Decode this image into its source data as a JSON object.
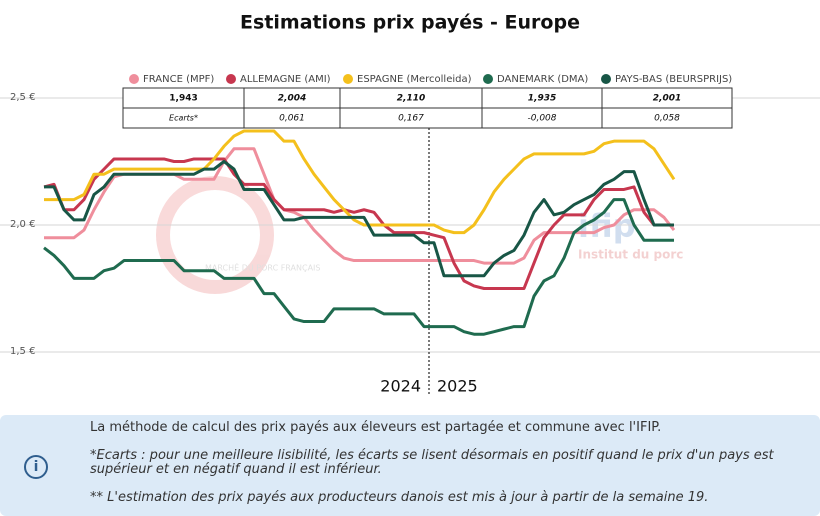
{
  "chart_data": {
    "type": "line",
    "title": "Estimations prix payés - Europe",
    "categories": [
      null,
      null,
      null,
      null,
      null,
      null,
      null,
      null,
      null,
      null,
      null,
      null,
      null,
      null,
      null,
      null,
      null,
      null,
      null,
      null,
      null,
      null,
      null,
      null,
      null,
      null,
      null,
      null,
      null,
      null,
      null,
      null,
      null,
      null,
      null,
      null,
      null,
      null,
      null,
      null,
      null,
      null,
      null,
      null,
      null,
      null,
      null,
      null,
      null,
      null,
      null,
      null,
      null,
      null,
      null,
      null,
      null,
      null,
      null,
      null,
      null,
      null,
      null,
      null
    ],
    "ylim": [
      1.4,
      2.6
    ],
    "yticks": [
      {
        "value": 1.5,
        "label": "1,5 €"
      },
      {
        "value": 2.0,
        "label": "2,0 €"
      },
      {
        "value": 2.5,
        "label": "2,5 €"
      }
    ],
    "grid": true,
    "legend": "top",
    "annotations": [
      "2024",
      "2025"
    ],
    "series": [
      {
        "name": "FRANCE (MPF)",
        "color": "#ef8e9c",
        "values": [
          1.95,
          1.95,
          1.95,
          1.95,
          1.98,
          2.06,
          2.13,
          2.19,
          2.2,
          2.2,
          2.2,
          2.2,
          2.2,
          2.2,
          2.18,
          2.18,
          2.18,
          2.18,
          2.25,
          2.3,
          2.3,
          2.3,
          2.2,
          2.1,
          2.06,
          2.05,
          2.03,
          1.98,
          1.94,
          1.9,
          1.87,
          1.86,
          1.86,
          1.86,
          1.86,
          1.86,
          1.86,
          1.86,
          1.86,
          1.86,
          1.86,
          1.86,
          1.86,
          1.86,
          1.85,
          1.85,
          1.85,
          1.85,
          1.87,
          1.94,
          1.97,
          1.97,
          1.97,
          1.97,
          1.97,
          1.97,
          1.99,
          2.0,
          2.04,
          2.06,
          2.06,
          2.06,
          2.03,
          1.98
        ]
      },
      {
        "name": "ALLEMAGNE (AMI)",
        "color": "#c7374f",
        "values": [
          2.15,
          2.16,
          2.06,
          2.06,
          2.1,
          2.18,
          2.22,
          2.26,
          2.26,
          2.26,
          2.26,
          2.26,
          2.26,
          2.25,
          2.25,
          2.26,
          2.26,
          2.26,
          2.26,
          2.2,
          2.16,
          2.16,
          2.16,
          2.1,
          2.06,
          2.06,
          2.06,
          2.06,
          2.06,
          2.05,
          2.06,
          2.05,
          2.06,
          2.05,
          2.0,
          1.97,
          1.97,
          1.97,
          1.97,
          1.96,
          1.95,
          1.85,
          1.78,
          1.76,
          1.75,
          1.75,
          1.75,
          1.75,
          1.75,
          1.85,
          1.95,
          2.0,
          2.04,
          2.04,
          2.04,
          2.1,
          2.14,
          2.14,
          2.14,
          2.15,
          2.05,
          2.0,
          2.0,
          2.0
        ]
      },
      {
        "name": "ESPAGNE (Mercolleida)",
        "color": "#f4c01c",
        "values": [
          2.1,
          2.1,
          2.1,
          2.1,
          2.12,
          2.2,
          2.2,
          2.22,
          2.22,
          2.22,
          2.22,
          2.22,
          2.22,
          2.22,
          2.22,
          2.22,
          2.22,
          2.26,
          2.31,
          2.35,
          2.37,
          2.37,
          2.37,
          2.37,
          2.33,
          2.33,
          2.26,
          2.2,
          2.15,
          2.1,
          2.06,
          2.02,
          2.0,
          2.0,
          2.0,
          2.0,
          2.0,
          2.0,
          2.0,
          2.0,
          1.98,
          1.97,
          1.97,
          2.0,
          2.06,
          2.13,
          2.18,
          2.22,
          2.26,
          2.28,
          2.28,
          2.28,
          2.28,
          2.28,
          2.28,
          2.29,
          2.32,
          2.33,
          2.33,
          2.33,
          2.33,
          2.3,
          2.24,
          2.18
        ]
      },
      {
        "name": "DANEMARK (DMA)",
        "color": "#1f6b4f",
        "values": [
          1.91,
          1.88,
          1.84,
          1.79,
          1.79,
          1.79,
          1.82,
          1.83,
          1.86,
          1.86,
          1.86,
          1.86,
          1.86,
          1.86,
          1.82,
          1.82,
          1.82,
          1.82,
          1.79,
          1.79,
          1.79,
          1.79,
          1.73,
          1.73,
          1.68,
          1.63,
          1.62,
          1.62,
          1.62,
          1.67,
          1.67,
          1.67,
          1.67,
          1.67,
          1.65,
          1.65,
          1.65,
          1.65,
          1.6,
          1.6,
          1.6,
          1.6,
          1.58,
          1.57,
          1.57,
          1.58,
          1.59,
          1.6,
          1.6,
          1.72,
          1.78,
          1.8,
          1.87,
          1.97,
          2.0,
          2.02,
          2.05,
          2.1,
          2.1,
          2.0,
          1.94,
          1.94,
          1.94,
          1.94
        ]
      },
      {
        "name": "PAYS-BAS (BEURSPRIJS)",
        "color": "#185646",
        "values": [
          2.15,
          2.15,
          2.06,
          2.02,
          2.02,
          2.12,
          2.15,
          2.2,
          2.2,
          2.2,
          2.2,
          2.2,
          2.2,
          2.2,
          2.2,
          2.2,
          2.22,
          2.22,
          2.25,
          2.22,
          2.14,
          2.14,
          2.14,
          2.08,
          2.02,
          2.02,
          2.03,
          2.03,
          2.03,
          2.03,
          2.03,
          2.03,
          2.03,
          1.96,
          1.96,
          1.96,
          1.96,
          1.96,
          1.93,
          1.93,
          1.8,
          1.8,
          1.8,
          1.8,
          1.8,
          1.85,
          1.88,
          1.9,
          1.96,
          2.05,
          2.1,
          2.04,
          2.05,
          2.08,
          2.1,
          2.12,
          2.16,
          2.18,
          2.21,
          2.21,
          2.1,
          2.0,
          2.0,
          2.0
        ]
      }
    ]
  },
  "table": {
    "prices": [
      "1,943",
      "2,004",
      "2,110",
      "1,935",
      "2,001"
    ],
    "ecarts_label": "Ecarts*",
    "ecarts": [
      "0,061",
      "0,167",
      "-0,008",
      "0,058"
    ]
  },
  "watermarks": {
    "left": "MARCHÉ DU PORC FRANÇAIS",
    "right_logo": "ifip",
    "right_sub": "Institut du porc"
  },
  "info": {
    "icon": "i",
    "line1": "La méthode de calcul des prix payés aux éleveurs est partagée et commune avec l'IFIP.",
    "line2": "*Ecarts : pour une meilleure lisibilité, les écarts se lisent désormais en positif quand le prix d'un pays est supérieur et en négatif quand il est inférieur.",
    "line3": "** L'estimation des prix payés aux producteurs danois est mis à jour à partir de la semaine 19."
  }
}
